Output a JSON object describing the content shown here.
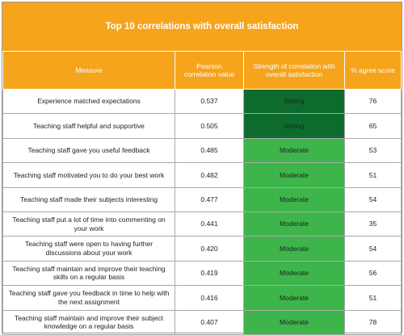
{
  "table": {
    "title": "Top 10 correlations with overall satisfaction",
    "header": [
      "Measure",
      "Pearson correlation value",
      "Strength of correlation with overall satisfaction",
      "% agree score"
    ],
    "header_color": "#f5a41c",
    "rows": [
      {
        "measure": "Experience matched expectations",
        "pearson": "0.537",
        "strength": "Strong",
        "agree": "76",
        "fill": "#0d6b2d"
      },
      {
        "measure": "Teaching staff helpful and supportive",
        "pearson": "0.505",
        "strength": "Strong",
        "agree": "65",
        "fill": "#0d6b2d"
      },
      {
        "measure": "Teaching staff gave you useful feedback",
        "pearson": "0.485",
        "strength": "Moderate",
        "agree": "53",
        "fill": "#3db54a"
      },
      {
        "measure": "Teaching staff motivated you to do your best work",
        "pearson": "0.482",
        "strength": "Moderate",
        "agree": "51",
        "fill": "#3db54a"
      },
      {
        "measure": "Teaching staff made their subjects interesting",
        "pearson": "0.477",
        "strength": "Moderate",
        "agree": "54",
        "fill": "#3db54a"
      },
      {
        "measure": "Teaching staff put a lot of time into commenting on your work",
        "pearson": "0.441",
        "strength": "Moderate",
        "agree": "35",
        "fill": "#3db54a"
      },
      {
        "measure": "Teaching staff were open to having further discussions about your work",
        "pearson": "0.420",
        "strength": "Moderate",
        "agree": "54",
        "fill": "#3db54a"
      },
      {
        "measure": "Teaching staff maintain and improve their teaching skills on a regular basis",
        "pearson": "0.419",
        "strength": "Moderate",
        "agree": "56",
        "fill": "#3db54a"
      },
      {
        "measure": "Teaching staff gave you feedback in time to help with the next assignment",
        "pearson": "0.416",
        "strength": "Moderate",
        "agree": "51",
        "fill": "#3db54a"
      },
      {
        "measure": "Teaching staff maintain and improve their subject knowledge on a regular basis",
        "pearson": "0.407",
        "strength": "Moderate",
        "agree": "78",
        "fill": "#3db54a"
      }
    ]
  }
}
